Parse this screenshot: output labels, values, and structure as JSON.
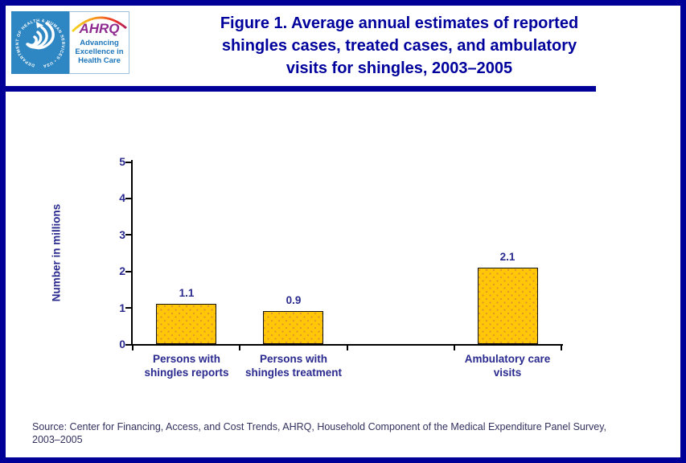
{
  "header": {
    "title_lines": [
      "Figure 1. Average annual estimates of reported",
      "shingles cases, treated cases, and ambulatory",
      "visits for shingles, 2003–2005"
    ]
  },
  "logo": {
    "seal_text": "DEPARTMENT OF HEALTH & HUMAN SERVICES • USA",
    "ahrq_acronym": "AHRQ",
    "tagline_lines": [
      "Advancing",
      "Excellence in",
      "Health Care"
    ]
  },
  "chart_data": {
    "type": "bar",
    "title": "Figure 1. Average annual estimates of reported shingles cases, treated cases, and ambulatory visits for shingles, 2003–2005",
    "ylabel": "Number in millions",
    "xlabel": "",
    "ylim": [
      0,
      5
    ],
    "yticks": [
      0,
      1,
      2,
      3,
      4,
      5
    ],
    "categories": [
      "Persons with shingles reports",
      "Persons with shingles treatment",
      "",
      "Ambulatory care visits"
    ],
    "category_lines": [
      [
        "Persons with",
        "shingles reports"
      ],
      [
        "Persons with",
        "shingles treatment"
      ],
      [
        "",
        ""
      ],
      [
        "Ambulatory care",
        "visits"
      ]
    ],
    "values": [
      1.1,
      0.9,
      null,
      2.1
    ],
    "value_labels": [
      "1.1",
      "0.9",
      "",
      "2.1"
    ],
    "grid": false,
    "legend_position": "none",
    "bar_color": "#FFC708"
  },
  "footer": {
    "source_lines": [
      "Source: Center for Financing, Access, and Cost Trends, AHRQ, Household Component of the Medical Expenditure Panel Survey,",
      "2003–2005"
    ]
  },
  "colors": {
    "frame_navy": "#000099",
    "title_navy": "#00009C",
    "chart_text_navy": "#2A2A8F",
    "bar_gold": "#FFC708",
    "bar_dot": "#DE9A28",
    "seal_blue": "#2E86C3",
    "ahrq_purple": "#8E2A90",
    "tagline_blue": "#1C75BB",
    "source_text": "#31315E"
  }
}
